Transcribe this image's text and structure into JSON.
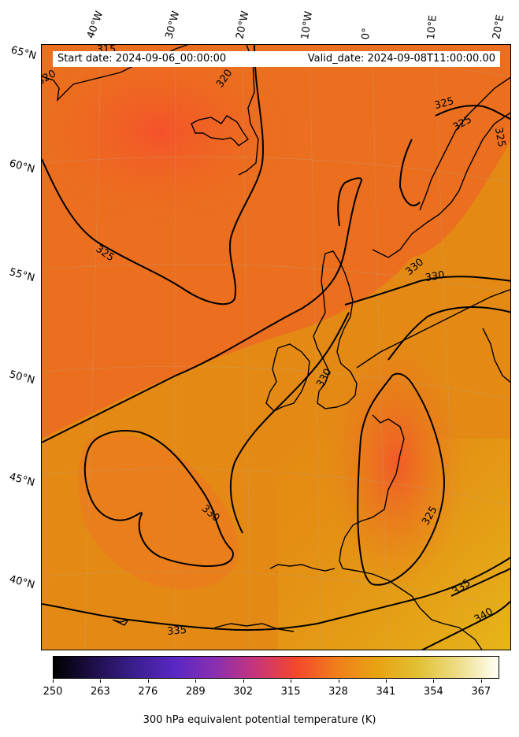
{
  "map": {
    "start_date": "Start date: 2024-09-06_00:00:00",
    "valid_date": "Valid_date: 2024-09-08T11:00:00.00",
    "lon_labels": [
      "40°W",
      "30°W",
      "20°W",
      "10°W",
      "0°",
      "10°E",
      "20°E"
    ],
    "lat_labels": [
      "65°N",
      "60°N",
      "55°N",
      "50°N",
      "45°N",
      "40°N"
    ],
    "contour_labels": [
      "315",
      "320",
      "320",
      "325",
      "325",
      "325",
      "325",
      "330",
      "330",
      "330",
      "330",
      "325",
      "335",
      "340",
      "335"
    ],
    "colors": {
      "background_field": "#e39110",
      "warm_region": "#f45a22",
      "coastline": "#000000",
      "contour": "#000000"
    }
  },
  "colorbar": {
    "ticks": [
      "250",
      "263",
      "276",
      "289",
      "302",
      "315",
      "328",
      "341",
      "354",
      "367"
    ],
    "title": "300 hPa equivalent potential temperature (K)",
    "range": [
      250,
      372
    ],
    "colormap": [
      "#000000",
      "#1f0f4a",
      "#3a1f8f",
      "#5a28c4",
      "#8a2fb0",
      "#c8357a",
      "#f4472c",
      "#f07e1c",
      "#e8a312",
      "#e2c033",
      "#eddd86",
      "#fffff6"
    ]
  }
}
